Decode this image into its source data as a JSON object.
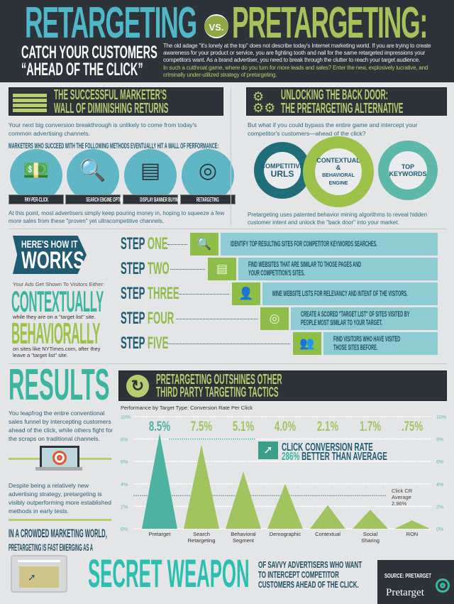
{
  "header": {
    "title_left": "RETARGETING",
    "vs": "VS.",
    "title_right": "PRETARGETING:",
    "subtitle_line1": "CATCH YOUR CUSTOMERS",
    "subtitle_line2": "“AHEAD OF THE CLICK”",
    "intro": "The old adage \"it's lonely at the top\" does not describe today's Internet marketing world. If you are trying to create awareness for your product or service, you are fighting tooth and nail for the same retargeted impressions your competitors want. As a brand advertiser, you need to break through the clutter to reach your target audience.",
    "intro_highlight": "In such a cutthroat game, where do you turn for more leads and sales? Enter the new, explosively lucrative, and criminally under-utilized strategy of pretargeting."
  },
  "wall": {
    "title_line1": "THE SUCCESSFUL MARKETER'S",
    "title_line2": "WALL OF DIMINISHING RETURNS",
    "text1": "Your next big conversion breakthrough is unlikely to come from today's common advertising channels.",
    "subhead": "MARKETERS WHO SUCCEED WITH THE FOLLOWING METHODS EVENTUALLY HIT A WALL OF PERFORMANCE:",
    "methods": [
      {
        "label": "PAY-PER-CLICK",
        "icon": "money-cursor-icon"
      },
      {
        "label": "SEARCH ENGINE OPTIMIZATION",
        "icon": "magnifier-chart-icon"
      },
      {
        "label": "DISPLAY BANNER BUYING",
        "icon": "banner-icon"
      },
      {
        "label": "RETARGETING",
        "icon": "target-icon"
      }
    ],
    "text2": "At this point, most advertisers simply keep pouring money in, hoping to squeeze a few more sales from these \"proven\" yet ultracompetitive channels."
  },
  "backdoor": {
    "title_line1": "UNLOCKING THE BACK DOOR:",
    "title_line2": "THE PRETARGETING ALTERNATIVE",
    "text1": "But what if you could bypass the entire game and intercept your competitor's customers—ahead of the click?",
    "gears": [
      {
        "line1": "COMPETITIVE",
        "line2": "URLS"
      },
      {
        "line1": "CONTEXTUAL &",
        "line2": "BEHAVIORAL ENGINE"
      },
      {
        "line1": "TOP",
        "line2": "KEYWORDS"
      }
    ],
    "text2": "Pretargeting uses patented behavior mining algorithms to reveal hidden customer intent and unlock the \"back door\" into your market."
  },
  "how": {
    "banner_line1": "HERE'S HOW IT",
    "banner_line2": "WORKS",
    "shown": "Your Ads Get Shown To Visitors Either:",
    "contextually": "CONTEXTUALLY",
    "contextually_sub": "while they are on a \"target list\" site.",
    "behaviorally": "BEHAVIORALLY",
    "behaviorally_sub": "on sites like NYTimes.com, after they leave a \"target list\" site.",
    "steps": [
      {
        "step": "STEP",
        "num": "ONE",
        "icon": "magnifier-icon",
        "text": "IDENTIFY TOP RESULTING SITES FOR COMPETITOR KEYWORDS SEARCHES."
      },
      {
        "step": "STEP",
        "num": "TWO",
        "icon": "webpage-icon",
        "text": "FIND WEBSITES THAT ARE SIMILAR TO THOSE PAGES AND\nYOUR COMPETITION'S SITES."
      },
      {
        "step": "STEP",
        "num": "THREE",
        "icon": "person-card-icon",
        "text": "MINE WEBSITE LISTS FOR RELEVANCY AND INTENT OF THE VISITORS."
      },
      {
        "step": "STEP",
        "num": "FOUR",
        "icon": "target-icon",
        "text": "CREATE A SCORED \"TARGET LIST\" OF SITES VISITED BY\nPEOPLE MOST SIMILAR TO YOUR TARGET."
      },
      {
        "step": "STEP",
        "num": "FIVE",
        "icon": "people-icon",
        "text": "FIND VISITORS WHO HAVE VISITED\nTHOSE SITES BEFORE."
      }
    ]
  },
  "results": {
    "title": "RESULTS",
    "text1": "You leapfrog the entire conventional sales funnel by intercepting customers ahead of the click, while others fight for the scraps on traditional channels.",
    "text2": "Despite being a relatively new advertising strategy, pretargeting is visibly outperforming more established methods in early tests.",
    "crowded_line1": "IN A CROWDED MARKETING WORLD,",
    "crowded_line2": "PRETARGETING IS FAST EMERGING AS A",
    "secret": "SECRET WEAPON",
    "secret_sub": "OF SAVVY ADVERTISERS WHO WANT TO INTERCEPT COMPETITOR CUSTOMERS AHEAD OF THE CLICK."
  },
  "chart_header": {
    "line1": "PRETARGETING OUTSHINES OTHER",
    "line2": "THIRD PARTY TARGETING TACTICS"
  },
  "callout": {
    "line1": "CLICK CONVERSION RATE",
    "highlight": "286%",
    "line2": "BETTER THAN AVERAGE"
  },
  "chart_data": {
    "type": "bar",
    "style": "triangle",
    "title": "Performance by Target Type: Conversion Rate Per Click",
    "categories": [
      "Pretarget",
      "Search Retargeting",
      "Behavioral Segment",
      "Demographic",
      "Contextual",
      "Social Sharing",
      "RON"
    ],
    "values": [
      8.5,
      7.5,
      5.1,
      4.0,
      2.1,
      1.7,
      0.75
    ],
    "value_labels": [
      "8.5%",
      "7.5%",
      "5.1%",
      "4.0%",
      "2.1%",
      "1.7%",
      ".75%"
    ],
    "yticks": [
      "0%",
      "2%",
      "4%",
      "6%",
      "8%",
      "10%"
    ],
    "ylim": [
      0,
      10
    ],
    "grid": true,
    "average": {
      "value": 2.96,
      "label_line1": "Click CR",
      "label_line2": "Average",
      "label_line3": "2.96%"
    },
    "colors": {
      "highlight": "#4db3a0",
      "others": "#a2c45e"
    }
  },
  "footer": {
    "source": "SOURCE: PRETARGET",
    "logo": "Pretarget"
  }
}
